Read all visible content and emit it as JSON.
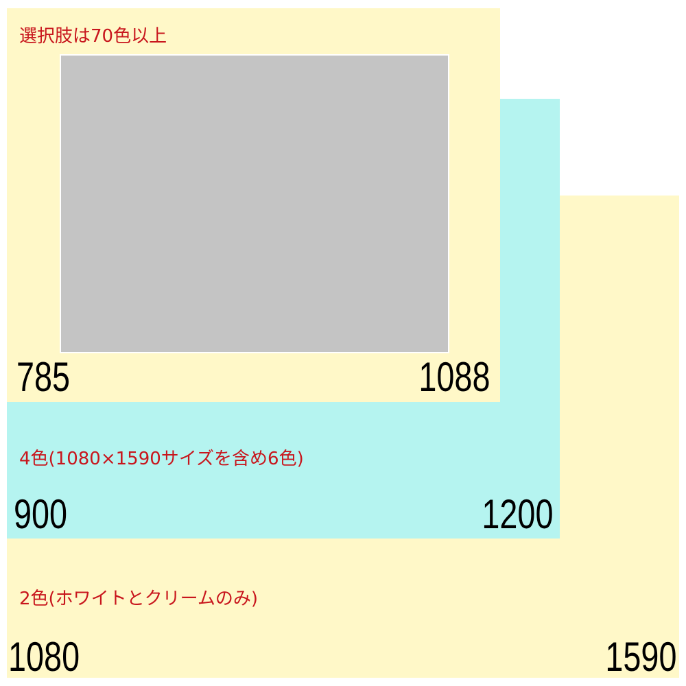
{
  "colors": {
    "cream": "#fff8c8",
    "cyan": "#b5f4f0",
    "gray": "#c4c4c4",
    "label": "#c8161d"
  },
  "size_1080": {
    "label": "2色(ホワイトとクリームのみ)",
    "width": "1080",
    "height": "1590"
  },
  "size_900": {
    "label": "4色(1080×1590サイズを含め6色)",
    "width": "900",
    "height": "1200"
  },
  "size_785": {
    "label": "選択肢は70色以上",
    "width": "785",
    "height": "1088"
  }
}
